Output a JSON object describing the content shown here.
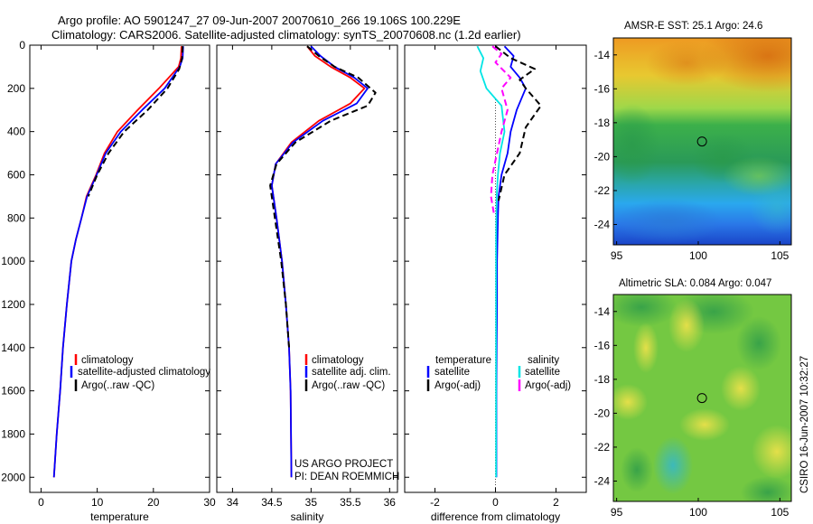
{
  "header": {
    "line1": "Argo profile: AO 5901247_27 09-Jun-2007 20070610_266 19.106S 100.229E",
    "line2": "Climatology: CARS2006. Satellite-adjusted climatology: synTS_20070608.nc (1.2d earlier)"
  },
  "side_note": "CSIRO 16-Jun-2007 10:32:27",
  "project_note": [
    "US ARGO PROJECT",
    "PI: DEAN ROEMMICH"
  ],
  "colors": {
    "climatology": "#ff0000",
    "satellite": "#0000ff",
    "argo": "#000000",
    "sal_satellite": "#00e5e5",
    "sal_argo": "#ff00ff"
  },
  "chart_data": [
    {
      "type": "line",
      "id": "temperature",
      "xlabel": "temperature",
      "ylabel": "",
      "xlim": [
        -2,
        30
      ],
      "ylim": [
        0,
        2070
      ],
      "y_reversed": true,
      "xticks": [
        0,
        10,
        20,
        30
      ],
      "yticks": [
        0,
        200,
        400,
        600,
        800,
        1000,
        1200,
        1400,
        1600,
        1800,
        2000
      ],
      "legend": [
        "climatology",
        "satellite-adjusted climatology",
        "Argo(..raw -QC)"
      ],
      "series": [
        {
          "name": "climatology",
          "color": "#ff0000",
          "style": "solid",
          "x": [
            25.0,
            24.9,
            24.5,
            21.0,
            17.2,
            13.6,
            11.3,
            9.8,
            8.1,
            7.2,
            6.2,
            5.4,
            4.6,
            3.9,
            3.4,
            2.8,
            2.3
          ],
          "y": [
            5,
            60,
            100,
            200,
            300,
            400,
            500,
            600,
            700,
            800,
            900,
            1000,
            1200,
            1400,
            1600,
            1800,
            2000
          ]
        },
        {
          "name": "satellite-adjusted climatology",
          "color": "#0000ff",
          "style": "solid",
          "x": [
            25.3,
            25.2,
            24.7,
            22.0,
            18.0,
            14.2,
            11.5,
            9.9,
            8.2,
            7.2,
            6.2,
            5.4,
            4.6,
            3.9,
            3.4,
            2.8,
            2.3
          ],
          "y": [
            5,
            60,
            100,
            200,
            300,
            400,
            500,
            600,
            700,
            800,
            900,
            1000,
            1200,
            1400,
            1600,
            1800,
            2000
          ]
        },
        {
          "name": "Argo(..raw -QC)",
          "color": "#000000",
          "style": "dash",
          "x": [
            25.2,
            25.1,
            24.6,
            22.5,
            19.0,
            14.8,
            12.0,
            10.0,
            8.4
          ],
          "y": [
            5,
            60,
            110,
            200,
            300,
            400,
            500,
            600,
            700
          ]
        }
      ]
    },
    {
      "type": "line",
      "id": "salinity",
      "xlabel": "salinity",
      "ylabel": "",
      "xlim": [
        33.8,
        36.1
      ],
      "ylim": [
        0,
        2070
      ],
      "y_reversed": true,
      "xticks": [
        34,
        34.5,
        35,
        35.5,
        36
      ],
      "legend": [
        "climatology",
        "satellite adj. clim.",
        "Argo(..raw -QC)"
      ],
      "series": [
        {
          "name": "climatology",
          "color": "#ff0000",
          "style": "solid",
          "x": [
            34.95,
            35.05,
            35.25,
            35.5,
            35.68,
            35.5,
            35.1,
            34.75,
            34.55,
            34.5,
            34.56,
            34.63,
            34.68,
            34.72,
            34.74,
            34.75
          ],
          "y": [
            5,
            50,
            100,
            150,
            200,
            270,
            350,
            450,
            550,
            650,
            800,
            1000,
            1200,
            1400,
            1600,
            2000
          ]
        },
        {
          "name": "satellite adj. clim.",
          "color": "#0000ff",
          "style": "solid",
          "x": [
            35.0,
            35.12,
            35.3,
            35.55,
            35.72,
            35.58,
            35.15,
            34.77,
            34.55,
            34.5,
            34.56,
            34.63,
            34.68,
            34.72,
            34.74,
            34.75
          ],
          "y": [
            5,
            50,
            100,
            150,
            200,
            270,
            350,
            450,
            550,
            650,
            800,
            1000,
            1200,
            1400,
            1600,
            2000
          ]
        },
        {
          "name": "Argo(..raw -QC)",
          "color": "#000000",
          "style": "dash",
          "x": [
            34.95,
            35.1,
            35.3,
            35.6,
            35.82,
            35.72,
            35.25,
            34.8,
            34.56,
            34.48,
            34.54,
            34.62,
            34.68,
            34.72
          ],
          "y": [
            5,
            50,
            100,
            150,
            220,
            280,
            350,
            450,
            550,
            650,
            800,
            1000,
            1200,
            1400
          ]
        }
      ]
    },
    {
      "type": "line",
      "id": "difference",
      "xlabel": "difference from climatology",
      "ylabel": "",
      "xlim": [
        -3.0,
        3.0
      ],
      "ylim": [
        0,
        2070
      ],
      "y_reversed": true,
      "xticks": [
        -2,
        0,
        2
      ],
      "legend_groups": [
        "temperature",
        "salinity"
      ],
      "legend": [
        "satellite",
        "Argo(-adj)",
        "satellite",
        "Argo(-adj)"
      ],
      "series": [
        {
          "name": "satellite",
          "group": "temperature",
          "color": "#0000ff",
          "style": "solid",
          "x": [
            0.3,
            0.6,
            0.5,
            0.8,
            1.0,
            0.7,
            0.5,
            0.4,
            0.2,
            0.1,
            0.08,
            0.05,
            0.05,
            0.04,
            0.03,
            0.03
          ],
          "y": [
            5,
            50,
            100,
            150,
            200,
            300,
            400,
            500,
            600,
            700,
            800,
            1000,
            1200,
            1400,
            1600,
            2000
          ]
        },
        {
          "name": "Argo(-adj)",
          "group": "temperature",
          "color": "#000000",
          "style": "dash",
          "x": [
            0.0,
            0.5,
            1.3,
            0.8,
            1.0,
            1.5,
            1.0,
            0.8,
            0.3,
            0.1
          ],
          "y": [
            5,
            60,
            110,
            160,
            200,
            280,
            380,
            500,
            600,
            720
          ]
        },
        {
          "name": "satellite",
          "group": "salinity",
          "color": "#00e5e5",
          "style": "solid",
          "x": [
            -0.6,
            -0.4,
            -0.5,
            -0.3,
            0.2,
            0.3,
            0.15,
            0.08,
            0.04,
            0.02,
            0.02,
            0.02
          ],
          "y": [
            5,
            60,
            120,
            200,
            280,
            400,
            500,
            600,
            700,
            900,
            1200,
            2000
          ]
        },
        {
          "name": "Argo(-adj)",
          "group": "salinity",
          "color": "#ff00ff",
          "style": "dash",
          "x": [
            -0.1,
            0.2,
            0.0,
            0.5,
            0.2,
            0.4,
            0.2,
            -0.1,
            -0.15,
            -0.05
          ],
          "y": [
            5,
            40,
            80,
            150,
            200,
            300,
            400,
            600,
            700,
            780
          ]
        }
      ]
    }
  ],
  "maps": [
    {
      "id": "sst",
      "title": "AMSR-E SST: 25.1  Argo: 24.6",
      "xticks": [
        95,
        100,
        105
      ],
      "yticks": [
        -14,
        -16,
        -18,
        -20,
        -22,
        -24
      ],
      "xlim": [
        94.8,
        105.7
      ],
      "ylim": [
        -25.2,
        -13.0
      ],
      "marker": {
        "lon": 100.229,
        "lat": -19.106
      }
    },
    {
      "id": "sla",
      "title": "Altimetric SLA: 0.084  Argo: 0.047",
      "xticks": [
        95,
        100,
        105
      ],
      "yticks": [
        -14,
        -16,
        -18,
        -20,
        -22,
        -24
      ],
      "xlim": [
        94.8,
        105.7
      ],
      "ylim": [
        -25.2,
        -13.0
      ],
      "marker": {
        "lon": 100.229,
        "lat": -19.106
      }
    }
  ]
}
